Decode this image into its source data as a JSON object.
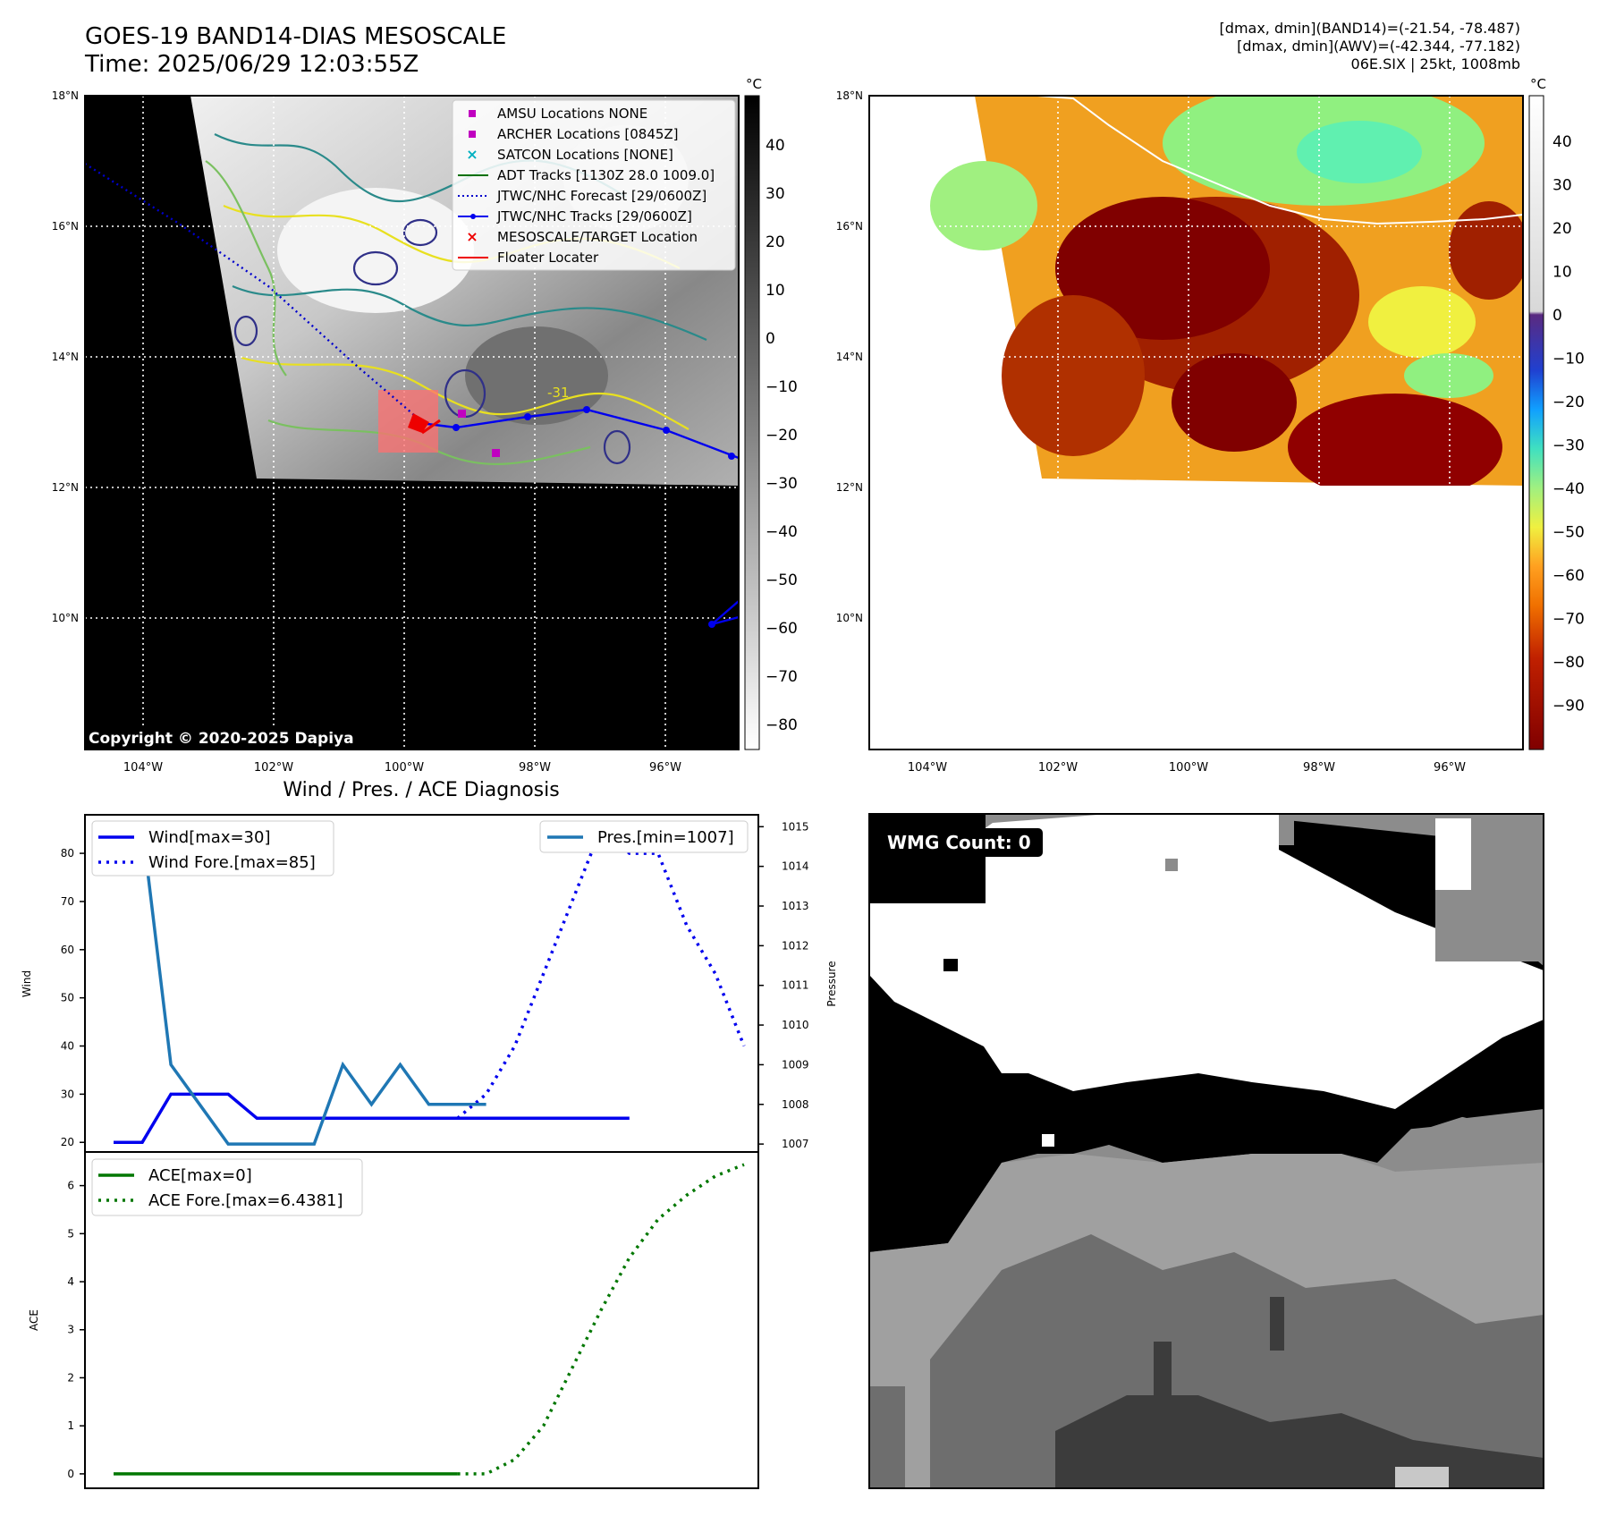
{
  "header": {
    "title": "GOES-19 BAND14-DIAS MESOSCALE",
    "time": "Time: 2025/06/29 12:03:55Z",
    "meta_line1": "[dmax, dmin](BAND14)=(-21.54, -78.487)",
    "meta_line2": "[dmax, dmin](AWV)=(-42.344, -77.182)",
    "meta_line3": "06E.SIX | 25kt, 1008mb"
  },
  "map_panel": {
    "lat_labels": [
      "18°N",
      "16°N",
      "14°N",
      "12°N",
      "10°N"
    ],
    "lon_labels": [
      "104°W",
      "102°W",
      "100°W",
      "98°W",
      "96°W"
    ],
    "copyright": "Copyright © 2020-2025 Dapiya",
    "contour_label": "-31",
    "colorbar_unit": "°C",
    "colorbar_ticks": [
      "40",
      "30",
      "20",
      "10",
      "0",
      "−10",
      "−20",
      "−30",
      "−40",
      "−50",
      "−60",
      "−70",
      "−80"
    ],
    "legend": [
      {
        "label": "AMSU Locations NONE",
        "symbol": "square",
        "color": "#c000c0"
      },
      {
        "label": "ARCHER Locations [0845Z]",
        "symbol": "square",
        "color": "#c000c0"
      },
      {
        "label": "SATCON Locations [NONE]",
        "symbol": "x",
        "color": "#00b0c0"
      },
      {
        "label": "ADT Tracks [1130Z 28.0 1009.0]",
        "symbol": "line",
        "color": "#007000"
      },
      {
        "label": "JTWC/NHC Forecast [29/0600Z]",
        "symbol": "dotted",
        "color": "#0000cc"
      },
      {
        "label": "JTWC/NHC Tracks [29/0600Z]",
        "symbol": "line-dot",
        "color": "#0000ee"
      },
      {
        "label": "MESOSCALE/TARGET Location",
        "symbol": "x",
        "color": "#ee0000"
      },
      {
        "label": "Floater Locater",
        "symbol": "line",
        "color": "#ee0000"
      }
    ]
  },
  "awv_panel": {
    "lat_labels": [
      "18°N",
      "16°N",
      "14°N",
      "12°N",
      "10°N"
    ],
    "lon_labels": [
      "104°W",
      "102°W",
      "100°W",
      "98°W",
      "96°W"
    ],
    "colorbar_unit": "°C",
    "colorbar_ticks": [
      "40",
      "30",
      "20",
      "10",
      "0",
      "−10",
      "−20",
      "−30",
      "−40",
      "−50",
      "−60",
      "−70",
      "−80",
      "−90"
    ]
  },
  "wmg_panel": {
    "badge": "WMG Count: 0"
  },
  "colors": {
    "wind": "#0000ee",
    "pressure": "#1f77b4",
    "ace": "#007700"
  },
  "chart_data": [
    {
      "type": "line",
      "title": "Wind / Pres. / ACE Diagnosis",
      "ylabel": "Wind",
      "ylabel_right": "Pressure",
      "ylim": [
        18,
        88
      ],
      "ylim_right": [
        1006.8,
        1015.3
      ],
      "yticks": [
        20,
        30,
        40,
        50,
        60,
        70,
        80
      ],
      "yticks_right": [
        1007,
        1008,
        1009,
        1010,
        1011,
        1012,
        1013,
        1014,
        1015
      ],
      "xlim": [
        0,
        23.5
      ],
      "legend_left": [
        "Wind[max=30]",
        "Wind Fore.[max=85]"
      ],
      "legend_right": [
        "Pres.[min=1007]"
      ],
      "series": [
        {
          "name": "Wind[max=30]",
          "axis": "left",
          "style": "solid",
          "x": [
            1,
            2,
            3,
            4,
            5,
            6,
            7,
            8,
            9,
            10,
            11,
            12,
            13,
            14,
            15,
            16,
            17,
            18,
            19
          ],
          "values": [
            20,
            20,
            30,
            30,
            30,
            25,
            25,
            25,
            25,
            25,
            25,
            25,
            25,
            25,
            25,
            25,
            25,
            25,
            25
          ]
        },
        {
          "name": "Wind Fore.[max=85]",
          "axis": "left",
          "style": "dotted",
          "x": [
            13,
            14,
            15,
            16,
            17,
            18,
            19,
            20,
            21,
            22,
            23
          ],
          "values": [
            25,
            30,
            40,
            55,
            70,
            85,
            80,
            80,
            65,
            55,
            40
          ]
        },
        {
          "name": "Pres.[min=1007]",
          "axis": "right",
          "style": "solid",
          "x": [
            1,
            2,
            3,
            4,
            5,
            6,
            7,
            8,
            9,
            10,
            11,
            12,
            13,
            14
          ],
          "values": [
            1015,
            1015,
            1009,
            1008,
            1007,
            1007,
            1007,
            1007,
            1009,
            1008,
            1009,
            1008,
            1008,
            1008
          ]
        }
      ]
    },
    {
      "type": "line",
      "ylabel": "ACE",
      "ylim": [
        -0.3,
        6.7
      ],
      "yticks": [
        0,
        1,
        2,
        3,
        4,
        5,
        6
      ],
      "xlim": [
        0,
        23.5
      ],
      "legend": [
        "ACE[max=0]",
        "ACE Fore.[max=6.4381]"
      ],
      "series": [
        {
          "name": "ACE[max=0]",
          "style": "solid",
          "x": [
            1,
            13
          ],
          "values": [
            0,
            0
          ]
        },
        {
          "name": "ACE Fore.[max=6.4381]",
          "style": "dotted",
          "x": [
            13,
            14,
            15,
            16,
            17,
            18,
            19,
            20,
            21,
            22,
            23
          ],
          "values": [
            0,
            0,
            0.3,
            1.0,
            2.2,
            3.4,
            4.5,
            5.3,
            5.8,
            6.2,
            6.4381
          ]
        }
      ]
    }
  ]
}
